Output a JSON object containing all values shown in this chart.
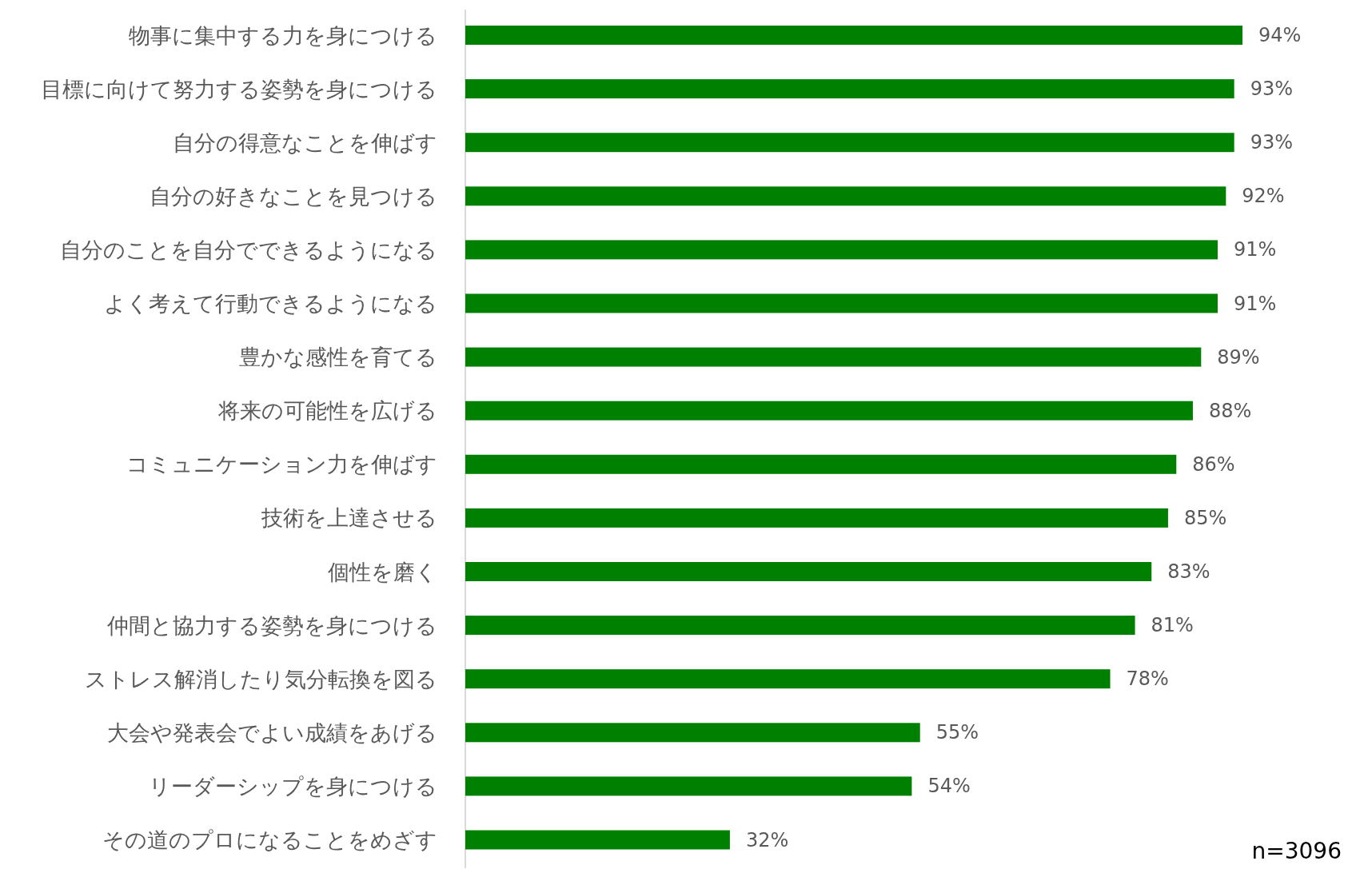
{
  "chart_data": {
    "type": "bar",
    "orientation": "horizontal",
    "categories": [
      "物事に集中する力を身につける",
      "目標に向けて努力する姿勢を身につける",
      "自分の得意なことを伸ばす",
      "自分の好きなことを見つける",
      "自分のことを自分でできるようになる",
      "よく考えて行動できるようになる",
      "豊かな感性を育てる",
      "将来の可能性を広げる",
      "コミュニケーション力を伸ばす",
      "技術を上達させる",
      "個性を磨く",
      "仲間と協力する姿勢を身につける",
      "ストレス解消したり気分転換を図る",
      "大会や発表会でよい成績をあげる",
      "リーダーシップを身につける",
      "その道のプロになることをめざす"
    ],
    "values": [
      94,
      93,
      93,
      92,
      91,
      91,
      89,
      88,
      86,
      85,
      83,
      81,
      78,
      55,
      54,
      32
    ],
    "value_labels": [
      "94%",
      "93%",
      "93%",
      "92%",
      "91%",
      "91%",
      "89%",
      "88%",
      "86%",
      "85%",
      "83%",
      "81%",
      "78%",
      "55%",
      "54%",
      "32%"
    ],
    "color": "#008000",
    "annotations": [
      "n=3096"
    ]
  }
}
